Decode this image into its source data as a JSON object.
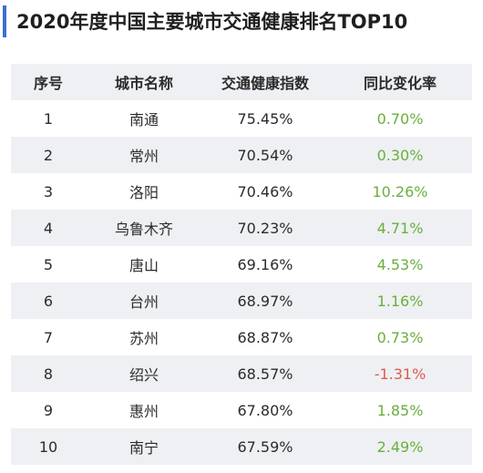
{
  "title": "2020年度中国主要城市交通健康排名TOP10",
  "colors": {
    "accent": "#3d6fd0",
    "positive": "#6aaf3d",
    "negative": "#e05a4f",
    "stripe": "#eef0f3"
  },
  "table": {
    "headers": [
      "序号",
      "城市名称",
      "交通健康指数",
      "同比变化率"
    ],
    "rows": [
      {
        "rank": "1",
        "city": "南通",
        "index": "75.45%",
        "change": "0.70%",
        "direction": "up"
      },
      {
        "rank": "2",
        "city": "常州",
        "index": "70.54%",
        "change": "0.30%",
        "direction": "up"
      },
      {
        "rank": "3",
        "city": "洛阳",
        "index": "70.46%",
        "change": "10.26%",
        "direction": "up"
      },
      {
        "rank": "4",
        "city": "乌鲁木齐",
        "index": "70.23%",
        "change": "4.71%",
        "direction": "up"
      },
      {
        "rank": "5",
        "city": "唐山",
        "index": "69.16%",
        "change": "4.53%",
        "direction": "up"
      },
      {
        "rank": "6",
        "city": "台州",
        "index": "68.97%",
        "change": "1.16%",
        "direction": "up"
      },
      {
        "rank": "7",
        "city": "苏州",
        "index": "68.87%",
        "change": "0.73%",
        "direction": "up"
      },
      {
        "rank": "8",
        "city": "绍兴",
        "index": "68.57%",
        "change": "-1.31%",
        "direction": "down"
      },
      {
        "rank": "9",
        "city": "惠州",
        "index": "67.80%",
        "change": "1.85%",
        "direction": "up"
      },
      {
        "rank": "10",
        "city": "南宁",
        "index": "67.59%",
        "change": "2.49%",
        "direction": "up"
      }
    ]
  }
}
